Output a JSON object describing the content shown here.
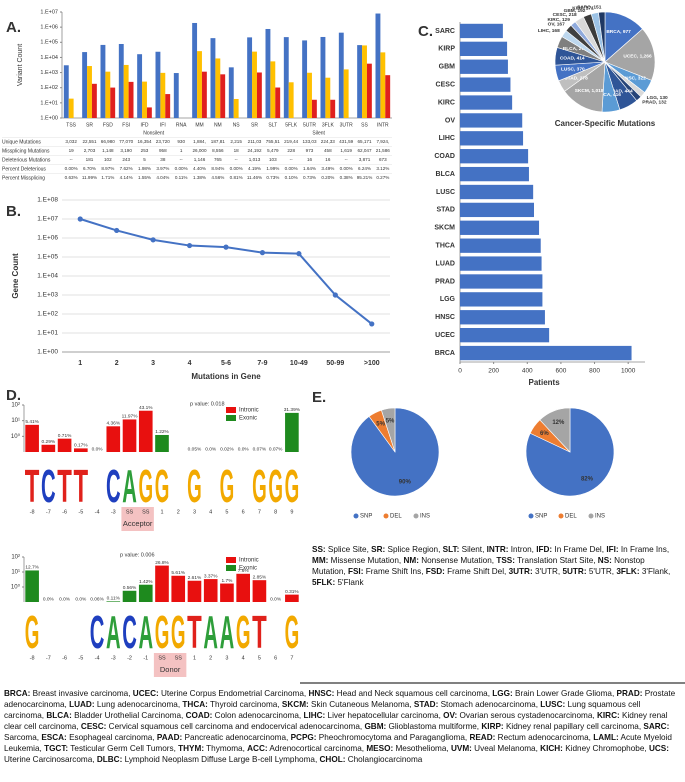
{
  "chart_data": [
    {
      "type": "bar",
      "panel": "A.",
      "ylabel": "Variant Count",
      "ylog": true,
      "ylim": [
        1,
        10000000
      ],
      "yticks": [
        {
          "value": 1,
          "label": "1.E+00"
        },
        {
          "value": 10,
          "label": "1.E+01"
        },
        {
          "value": 100,
          "label": "1.E+02"
        },
        {
          "value": 1000,
          "label": "1.E+03"
        },
        {
          "value": 10000,
          "label": "1.E+04"
        },
        {
          "value": 100000,
          "label": "1.E+05"
        },
        {
          "value": 1000000,
          "label": "1.E+06"
        },
        {
          "value": 10000000,
          "label": "1.E+07"
        }
      ],
      "groups": [
        {
          "name": "Nonsilent",
          "categories": [
            "TSS",
            "SR",
            "FSD",
            "FSI",
            "IFD",
            "IFI",
            "RNA",
            "MM",
            "NM",
            "NS"
          ]
        },
        {
          "name": "Silent",
          "categories": [
            "SR",
            "SLT",
            "5FLK",
            "5UTR",
            "3FLK",
            "3UTR",
            "SS",
            "INTR"
          ]
        }
      ],
      "series": [
        {
          "color": "#4472c4",
          "values": [
            3032,
            22551,
            66980,
            77070,
            16354,
            23720,
            930,
            1884000,
            187810,
            2215,
            211030,
            755510,
            219440,
            133030,
            224330,
            431590,
            65171,
            7924000
          ]
        },
        {
          "color": "#ffc000",
          "values": [
            19,
            2703,
            1148,
            3190,
            253,
            958,
            1,
            26000,
            8556,
            18,
            24192,
            5479,
            228,
            973,
            458,
            1619,
            62047,
            21586
          ]
        },
        {
          "color": "#e0201e",
          "values": [
            null,
            181,
            102,
            243,
            5,
            38,
            null,
            1146,
            765,
            null,
            1013,
            103,
            null,
            16,
            16,
            null,
            3871,
            673
          ]
        }
      ],
      "table": {
        "rows": [
          {
            "label": "Unique Mutations",
            "cells": [
              "3,032",
              "22,551",
              "66,980",
              "77,070",
              "16,354",
              "23,720",
              "930",
              "1,884,",
              "187,81",
              "2,215",
              "211,03",
              "755,51",
              "219,44",
              "133,03",
              "224,33",
              "431,59",
              "65,171",
              "7,924,"
            ]
          },
          {
            "label": "Missplicing Mutations",
            "cells": [
              "19",
              "2,703",
              "1,148",
              "3,190",
              "253",
              "958",
              "1",
              "26,000",
              "8,556",
              "18",
              "24,192",
              "5,479",
              "228",
              "973",
              "458",
              "1,619",
              "62,047",
              "21,586"
            ]
          },
          {
            "label": "Deleterious Mutations",
            "cells": [
              "--",
              "181",
              "102",
              "243",
              "5",
              "38",
              "--",
              "1,146",
              "765",
              "--",
              "1,013",
              "103",
              "--",
              "16",
              "16",
              "--",
              "3,871",
              "673"
            ]
          },
          {
            "label": "Percent Deleterious",
            "cells": [
              "0.00%",
              "6.70%",
              "8.97%",
              "7.62%",
              "1.98%",
              "3.97%",
              "0.00%",
              "4.40%",
              "8.94%",
              "0.00%",
              "4.19%",
              "1.99%",
              "0.00%",
              "1.64%",
              "3.49%",
              "0.00%",
              "6.24%",
              "3.12%"
            ]
          },
          {
            "label": "Percent Missplicing",
            "cells": [
              "0.63%",
              "11.99%",
              "1.71%",
              "4.14%",
              "1.55%",
              "4.04%",
              "0.11%",
              "1.38%",
              "4.56%",
              "0.81%",
              "11.46%",
              "0.73%",
              "0.10%",
              "0.73%",
              "0.20%",
              "0.38%",
              "95.21%",
              "0.27%"
            ]
          }
        ]
      }
    },
    {
      "type": "line",
      "panel": "B.",
      "ylabel": "Gene Count",
      "xlabel": "Mutations in Gene",
      "ylog": true,
      "grid": true,
      "color": "#4472c4",
      "categories": [
        "1",
        "2",
        "3",
        "4",
        "5-6",
        "7-9",
        "10-49",
        "50-99",
        ">100"
      ],
      "values": [
        10000000,
        2500000,
        800000,
        400000,
        330000,
        170000,
        150000,
        1000,
        30
      ],
      "ylim": [
        1,
        100000000
      ],
      "yticks": [
        {
          "value": 1,
          "label": "1.E+00"
        },
        {
          "value": 10,
          "label": "1.E+01"
        },
        {
          "value": 100,
          "label": "1.E+02"
        },
        {
          "value": 1000,
          "label": "1.E+03"
        },
        {
          "value": 10000,
          "label": "1.E+04"
        },
        {
          "value": 100000,
          "label": "1.E+05"
        },
        {
          "value": 1000000,
          "label": "1.E+06"
        },
        {
          "value": 10000000,
          "label": "1.E+07"
        },
        {
          "value": 100000000,
          "label": "1.E+08"
        }
      ]
    },
    {
      "type": "barh",
      "panel": "C.",
      "xlabel": "Patients",
      "color": "#4472c4",
      "categories": [
        "SARC",
        "KIRP",
        "GBM",
        "CESC",
        "KIRC",
        "OV",
        "LIHC",
        "COAD",
        "BLCA",
        "LUSC",
        "STAD",
        "SKCM",
        "THCA",
        "LUAD",
        "PRAD",
        "LGG",
        "HNSC",
        "UCEC",
        "BRCA"
      ],
      "values": [
        255,
        280,
        285,
        300,
        310,
        370,
        375,
        405,
        410,
        435,
        440,
        470,
        480,
        485,
        490,
        490,
        505,
        530,
        1020
      ],
      "xlim": [
        0,
        1100
      ],
      "xticks": [
        0,
        200,
        400,
        600,
        800,
        1000
      ]
    },
    {
      "type": "pie",
      "title": "Cancer-Specific Mutations",
      "values": [
        977,
        1266,
        322,
        130,
        132,
        444,
        416,
        1018,
        278,
        370,
        414,
        273,
        168,
        167,
        129,
        218,
        192,
        171,
        151
      ],
      "value_labels": [
        "BRCA, 977",
        "UCEC, 1,266",
        "HNSC, 322",
        "LGG, 130",
        "PRAD, 132",
        "LUAD, 444",
        "THCA, 416",
        "SKCM, 1,018",
        "STAD, 278",
        "LUSC, 370",
        "COAD, 414",
        "BLCA, 273",
        "LIHC, 168",
        "OV, 167",
        "KIRC, 129",
        "CESC, 218",
        "GBM, 192",
        "KIRP, 171",
        "SARC, 151"
      ],
      "colors": [
        "#4472c4",
        "#a5a5a5",
        "#5b9bd5",
        "#d9d9d9",
        "#264478",
        "#2f5597",
        "#5b9bd5",
        "#a5a5a5",
        "#bfbfbf",
        "#4472c4",
        "#2f5597",
        "#7f7f7f",
        "#bdd7ee",
        "#404040",
        "#8faadc",
        "#d9d9d9",
        "#3b3b3b",
        "#9dc3e6",
        "#1f3864"
      ]
    },
    {
      "type": "logo",
      "panel": "D.",
      "ylog": true,
      "ylim": [
        0.1,
        100
      ],
      "yticks": [
        {
          "value": 1,
          "label": "10⁰"
        },
        {
          "value": 10,
          "label": "10¹"
        },
        {
          "value": 100,
          "label": "10²"
        }
      ],
      "categories": [
        "-8",
        "-7",
        "-6",
        "-5",
        "-4",
        "-3",
        "SS",
        "SS",
        "1",
        "2",
        "3",
        "4",
        "5",
        "6",
        "7",
        "8",
        "9"
      ],
      "letters": [
        "T",
        "C",
        "T",
        "T",
        null,
        "C",
        "A",
        "G",
        "G",
        null,
        "G",
        null,
        "G",
        null,
        "G",
        "G",
        "G"
      ],
      "letter_colors": {
        "A": "#2e9e3a",
        "C": "#1f3fbf",
        "G": "#f2a900",
        "T": "#e0211b"
      },
      "series": [
        {
          "name": "Intronic",
          "color": "#e8100f",
          "values": [
            5.41,
            0.29,
            0.71,
            0.17,
            0.0,
            4.36,
            11.97,
            43.1,
            null,
            null,
            null,
            null,
            null,
            null,
            null,
            null,
            null
          ],
          "value_labels": [
            "5.41%",
            "0.29%",
            "0.71%",
            "0.17%",
            "0.0%",
            "4.36%",
            "11.97%",
            "43.1%",
            null,
            null,
            null,
            null,
            null,
            null,
            null,
            null,
            null
          ]
        },
        {
          "name": "Exonic",
          "color": "#1e8a1e",
          "values": [
            null,
            null,
            null,
            null,
            null,
            null,
            null,
            null,
            1.22,
            null,
            0.05,
            0.0,
            0.02,
            0.0,
            0.07,
            0.07,
            31.39
          ],
          "value_labels": [
            null,
            null,
            null,
            null,
            null,
            null,
            null,
            null,
            "1.22%",
            null,
            "0.05%",
            "0.0%",
            "0.02%",
            "0.0%",
            "0.07%",
            "0.07%",
            "31.39%"
          ]
        }
      ],
      "annotation": "p value: 0.018",
      "site": "Acceptor"
    },
    {
      "type": "logo",
      "ylog": true,
      "ylim": [
        0.1,
        100
      ],
      "yticks": [
        {
          "value": 1,
          "label": "10⁰"
        },
        {
          "value": 10,
          "label": "10¹"
        },
        {
          "value": 100,
          "label": "10²"
        }
      ],
      "categories": [
        "-8",
        "-7",
        "-6",
        "-5",
        "-4",
        "-3",
        "-2",
        "-1",
        "SS",
        "SS",
        "1",
        "2",
        "3",
        "4",
        "5",
        "6",
        "7"
      ],
      "letters": [
        "G",
        null,
        null,
        null,
        "C",
        "A",
        "C",
        "A",
        "G",
        "G",
        "T",
        "A",
        "A",
        "G",
        "T",
        null,
        "G"
      ],
      "letter_colors": {
        "A": "#2e9e3a",
        "C": "#1f3fbf",
        "G": "#f2a900",
        "T": "#e0211b"
      },
      "series": [
        {
          "name": "Intronic",
          "color": "#e8100f",
          "values": [
            null,
            null,
            null,
            null,
            null,
            null,
            null,
            null,
            26.8,
            5.61,
            2.61,
            3.37,
            1.7,
            7.6,
            2.85,
            0.0,
            0.31
          ],
          "value_labels": [
            null,
            null,
            null,
            null,
            null,
            null,
            null,
            null,
            "26.8%",
            "5.61%",
            "2.61%",
            "3.37%",
            "1.7%",
            "7.6%",
            "2.85%",
            "0.0%",
            "0.31%"
          ]
        },
        {
          "name": "Exonic",
          "color": "#1e8a1e",
          "values": [
            12.7,
            0.0,
            0.0,
            0.0,
            0.06,
            0.11,
            0.56,
            1.42,
            null,
            null,
            null,
            null,
            null,
            null,
            null,
            null,
            null
          ],
          "value_labels": [
            "12.7%",
            "0.0%",
            "0.0%",
            "0.0%",
            "0.06%",
            "0.11%",
            "0.56%",
            "1.42%",
            null,
            null,
            null,
            null,
            null,
            null,
            null,
            null,
            null
          ]
        }
      ],
      "annotation": "p value: 0.006",
      "site": "Donor"
    },
    {
      "type": "pie",
      "panel": "E.",
      "legend": true,
      "categories": [
        "SNP",
        "DEL",
        "INS"
      ],
      "values": [
        90,
        5,
        5
      ],
      "value_labels": [
        "90%",
        "5%",
        "5%"
      ],
      "colors": [
        "#4472c4",
        "#ed7d31",
        "#a5a5a5"
      ]
    },
    {
      "type": "pie",
      "legend": true,
      "categories": [
        "SNP",
        "DEL",
        "INS"
      ],
      "values": [
        82,
        6,
        12
      ],
      "value_labels": [
        "82%",
        "6%",
        "12%"
      ],
      "colors": [
        "#4472c4",
        "#ed7d31",
        "#a5a5a5"
      ]
    }
  ],
  "abbreviations": {
    "mutation_types": [
      {
        "abbr": "SS:",
        "text": " Splice Site, "
      },
      {
        "abbr": "SR:",
        "text": " Splice Region, "
      },
      {
        "abbr": "SLT:",
        "text": " Silent, "
      },
      {
        "abbr": "INTR:",
        "text": " Intron, "
      },
      {
        "abbr": "IFD:",
        "text": " In Frame Del, "
      },
      {
        "abbr": "IFI:",
        "text": " In Frame Ins, "
      },
      {
        "abbr": "MM:",
        "text": " Missense Mutation, "
      },
      {
        "abbr": "NM:",
        "text": " Nonsense Mutation, "
      },
      {
        "abbr": "TSS:",
        "text": " Translation Start Site, "
      },
      {
        "abbr": "NS:",
        "text": " Nonstop Mutation, "
      },
      {
        "abbr": "FSI:",
        "text": " Frame Shift Ins, "
      },
      {
        "abbr": "FSD:",
        "text": " Frame Shift Del, "
      },
      {
        "abbr": "3UTR:",
        "text": " 3'UTR, "
      },
      {
        "abbr": "5UTR:",
        "text": " 5'UTR, "
      },
      {
        "abbr": "3FLK:",
        "text": " 3'Flank, "
      },
      {
        "abbr": "5FLK:",
        "text": " 5'Flank"
      }
    ],
    "cancer_types": [
      {
        "abbr": "BRCA:",
        "text": " Breast invasive carcinoma, "
      },
      {
        "abbr": "UCEC:",
        "text": " Uterine Corpus Endometrial Carcinoma, "
      },
      {
        "abbr": "HNSC:",
        "text": " Head and Neck squamous cell carcinoma, "
      },
      {
        "abbr": "LGG:",
        "text": " Brain Lower Grade Glioma, "
      },
      {
        "abbr": "PRAD:",
        "text": " Prostate adenocarcinoma, "
      },
      {
        "abbr": "LUAD:",
        "text": " Lung adenocarcinoma, "
      },
      {
        "abbr": "THCA:",
        "text": " Thyroid carcinoma, "
      },
      {
        "abbr": "SKCM:",
        "text": " Skin Cutaneous Melanoma, "
      },
      {
        "abbr": "STAD:",
        "text": " Stomach adenocarcinoma, "
      },
      {
        "abbr": "LUSC:",
        "text": " Lung squamous cell carcinoma, "
      },
      {
        "abbr": "BLCA:",
        "text": " Bladder Urothelial Carcinoma, "
      },
      {
        "abbr": "COAD:",
        "text": " Colon adenocarcinoma, "
      },
      {
        "abbr": "LIHC:",
        "text": " Liver hepatocellular carcinoma, "
      },
      {
        "abbr": "OV:",
        "text": " Ovarian serous cystadenocarcinoma, "
      },
      {
        "abbr": "KIRC:",
        "text": " Kidney renal clear cell carcinoma, "
      },
      {
        "abbr": "CESC:",
        "text": " Cervical squamous cell carcinoma and endocervical adenocarcinoma, "
      },
      {
        "abbr": "GBM:",
        "text": " Glioblastoma multiforme, "
      },
      {
        "abbr": "KIRP:",
        "text": " Kidney renal papillary cell carcinoma, "
      },
      {
        "abbr": "SARC:",
        "text": " Sarcoma, "
      },
      {
        "abbr": "ESCA:",
        "text": " Esophageal carcinoma, "
      },
      {
        "abbr": "PAAD:",
        "text": " Pancreatic adenocarcinoma, "
      },
      {
        "abbr": "PCPG:",
        "text": " Pheochromocytoma and Paraganglioma, "
      },
      {
        "abbr": "READ:",
        "text": " Rectum adenocarcinoma, "
      },
      {
        "abbr": "LAML:",
        "text": " Acute Myeloid Leukemia, "
      },
      {
        "abbr": "TGCT:",
        "text": " Testicular Germ Cell Tumors, "
      },
      {
        "abbr": "THYM:",
        "text": " Thymoma, "
      },
      {
        "abbr": "ACC:",
        "text": " Adrenocortical carcinoma, "
      },
      {
        "abbr": "MESO:",
        "text": " Mesothelioma, "
      },
      {
        "abbr": "UVM:",
        "text": " Uveal Melanoma, "
      },
      {
        "abbr": "KICH:",
        "text": " Kidney Chromophobe, "
      },
      {
        "abbr": "UCS:",
        "text": " Uterine Carcinosarcoma, "
      },
      {
        "abbr": "DLBC:",
        "text": " Lymphoid Neoplasm Diffuse Large B-cell Lymphoma, "
      },
      {
        "abbr": "CHOL:",
        "text": " Cholangiocarcinoma"
      }
    ]
  }
}
